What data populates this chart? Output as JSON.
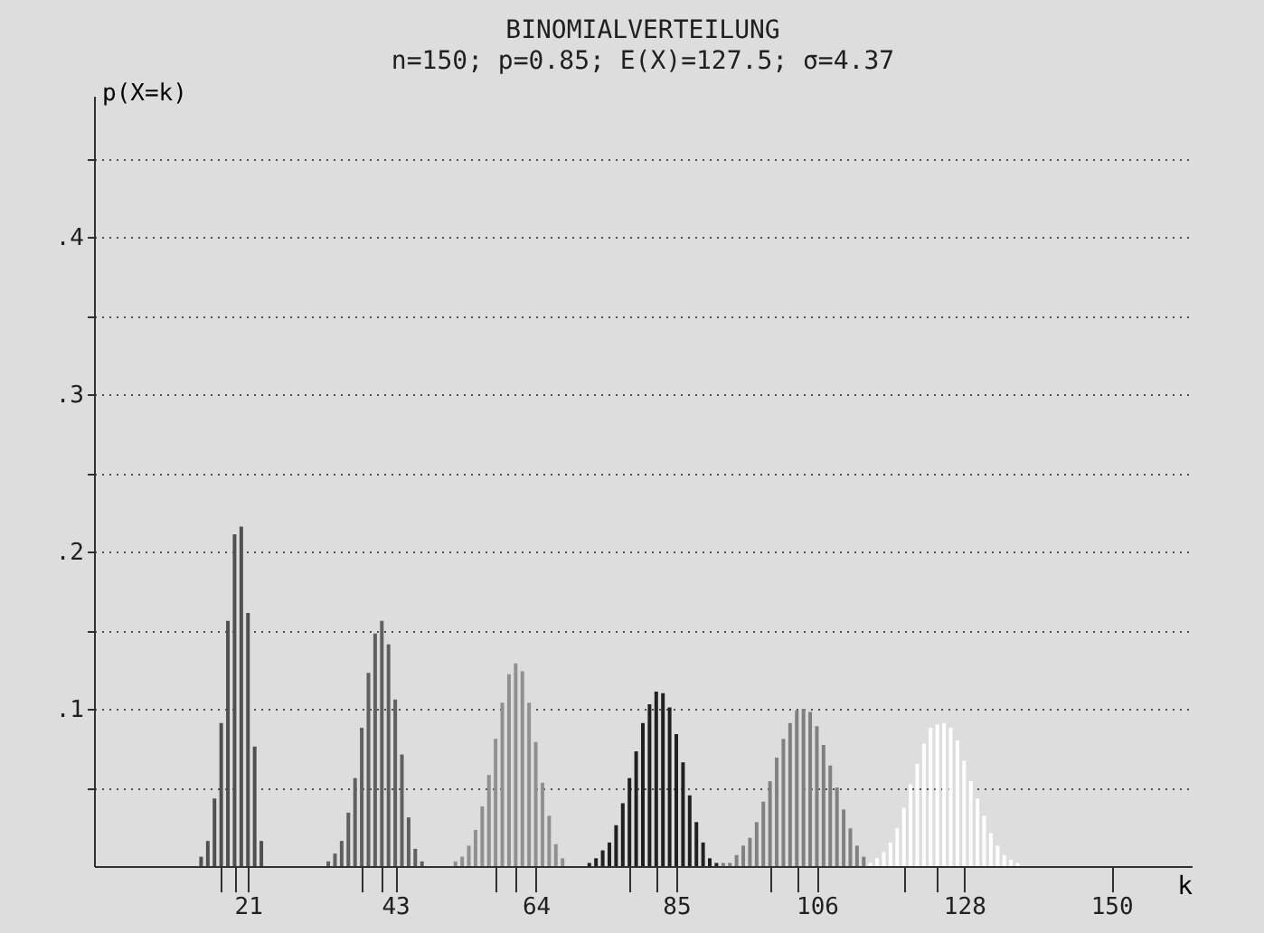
{
  "chart_data": {
    "type": "bar",
    "title": "BINOMIALVERTEILUNG",
    "subtitle": "n=150; p=0.85; E(X)=127.5; σ=4.37",
    "xlabel": "k",
    "ylabel": "p(X=k)",
    "xlim": [
      -2,
      162
    ],
    "ylim": [
      0,
      0.49
    ],
    "xticks": [
      {
        "value": 17,
        "label": null
      },
      {
        "value": 19,
        "label": null
      },
      21,
      {
        "value": 38,
        "label": null
      },
      {
        "value": 41,
        "label": null
      },
      43,
      {
        "value": 58,
        "label": null
      },
      {
        "value": 61,
        "label": null
      },
      64,
      {
        "value": 78,
        "label": null
      },
      {
        "value": 82,
        "label": null
      },
      85,
      {
        "value": 99,
        "label": null
      },
      {
        "value": 103,
        "label": null
      },
      106,
      {
        "value": 119,
        "label": null
      },
      {
        "value": 124,
        "label": null
      },
      128,
      150
    ],
    "yticks": [
      {
        "value": 0.05,
        "label": null
      },
      {
        "value": 0.1,
        "label": ".1"
      },
      {
        "value": 0.15,
        "label": null
      },
      {
        "value": 0.2,
        "label": ".2"
      },
      {
        "value": 0.25,
        "label": null
      },
      {
        "value": 0.3,
        "label": ".3"
      },
      {
        "value": 0.35,
        "label": null
      },
      {
        "value": 0.4,
        "label": ".4"
      },
      {
        "value": 0.45,
        "label": null
      }
    ],
    "grid": "y",
    "legend": false,
    "series": [
      {
        "color": "#505050",
        "x": [
          14,
          15,
          16,
          17,
          18,
          19,
          20,
          21,
          22,
          23
        ],
        "values": [
          0.006,
          0.016,
          0.043,
          0.091,
          0.156,
          0.211,
          0.216,
          0.161,
          0.076,
          0.016
        ]
      },
      {
        "color": "#606060",
        "x": [
          33,
          34,
          35,
          36,
          37,
          38,
          39,
          40,
          41,
          42,
          43,
          44,
          45,
          46,
          47
        ],
        "values": [
          0.003,
          0.008,
          0.016,
          0.034,
          0.056,
          0.088,
          0.123,
          0.148,
          0.156,
          0.141,
          0.106,
          0.071,
          0.031,
          0.011,
          0.003
        ]
      },
      {
        "color": "#909090",
        "x": [
          52,
          53,
          54,
          55,
          56,
          57,
          58,
          59,
          60,
          61,
          62,
          63,
          64,
          65,
          66,
          67,
          68
        ],
        "values": [
          0.003,
          0.006,
          0.013,
          0.023,
          0.038,
          0.058,
          0.081,
          0.104,
          0.122,
          0.129,
          0.124,
          0.104,
          0.079,
          0.053,
          0.032,
          0.014,
          0.005
        ]
      },
      {
        "color": "#202020",
        "x": [
          72,
          73,
          74,
          75,
          76,
          77,
          78,
          79,
          80,
          81,
          82,
          83,
          84,
          85,
          86,
          87,
          88,
          89,
          90,
          91
        ],
        "values": [
          0.002,
          0.005,
          0.01,
          0.015,
          0.026,
          0.04,
          0.056,
          0.073,
          0.091,
          0.103,
          0.111,
          0.11,
          0.101,
          0.084,
          0.066,
          0.045,
          0.028,
          0.015,
          0.005,
          0.002
        ]
      },
      {
        "color": "#808080",
        "x": [
          92,
          93,
          94,
          95,
          96,
          97,
          98,
          99,
          100,
          101,
          102,
          103,
          104,
          105,
          106,
          107,
          108,
          109,
          110,
          111,
          112,
          113
        ],
        "values": [
          0.002,
          0.002,
          0.007,
          0.013,
          0.018,
          0.028,
          0.041,
          0.054,
          0.069,
          0.081,
          0.091,
          0.099,
          0.1,
          0.098,
          0.089,
          0.077,
          0.064,
          0.05,
          0.036,
          0.024,
          0.013,
          0.006
        ]
      },
      {
        "color": "#ffffff",
        "x": [
          114,
          115,
          116,
          117,
          118,
          119,
          120,
          121,
          122,
          123,
          124,
          125,
          126,
          127,
          128,
          129,
          130,
          131,
          132,
          133,
          134,
          135,
          136
        ],
        "values": [
          0.002,
          0.005,
          0.009,
          0.015,
          0.024,
          0.037,
          0.052,
          0.065,
          0.078,
          0.088,
          0.09,
          0.091,
          0.088,
          0.08,
          0.067,
          0.054,
          0.043,
          0.032,
          0.021,
          0.013,
          0.007,
          0.004,
          0.002
        ]
      }
    ]
  }
}
